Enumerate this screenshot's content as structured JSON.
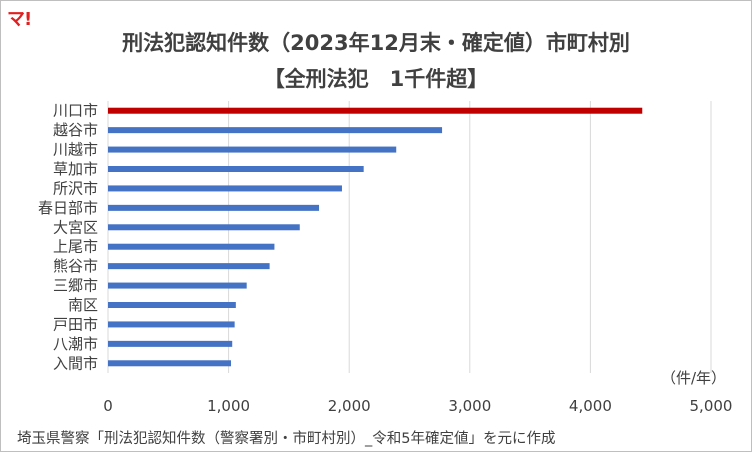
{
  "logo": "マ!",
  "source": "埼玉県警察「刑法犯認知件数（警察署別・市町村別）_令和5年確定値」を元に作成",
  "chart_data": {
    "type": "bar",
    "orientation": "horizontal",
    "title": "刑法犯認知件数（2023年12月末・確定値）市町村別",
    "subtitle": "【全刑法犯　1千件超】",
    "unit": "（件/年）",
    "categories": [
      "川口市",
      "越谷市",
      "川越市",
      "草加市",
      "所沢市",
      "春日部市",
      "大宮区",
      "上尾市",
      "熊谷市",
      "三郷市",
      "南区",
      "戸田市",
      "八潮市",
      "入間市"
    ],
    "values": [
      4430,
      2770,
      2390,
      2120,
      1940,
      1750,
      1590,
      1380,
      1340,
      1150,
      1060,
      1050,
      1030,
      1020
    ],
    "highlight_index": 0,
    "colors": {
      "highlight": "#c00000",
      "default": "#4472c4",
      "grid": "#d9d9d9"
    },
    "xlim": [
      0,
      5000
    ],
    "xticks": [
      0,
      1000,
      2000,
      3000,
      4000,
      5000
    ],
    "xtick_labels": [
      "0",
      "1,000",
      "2,000",
      "3,000",
      "4,000",
      "5,000"
    ],
    "grid": true,
    "legend": "none"
  }
}
